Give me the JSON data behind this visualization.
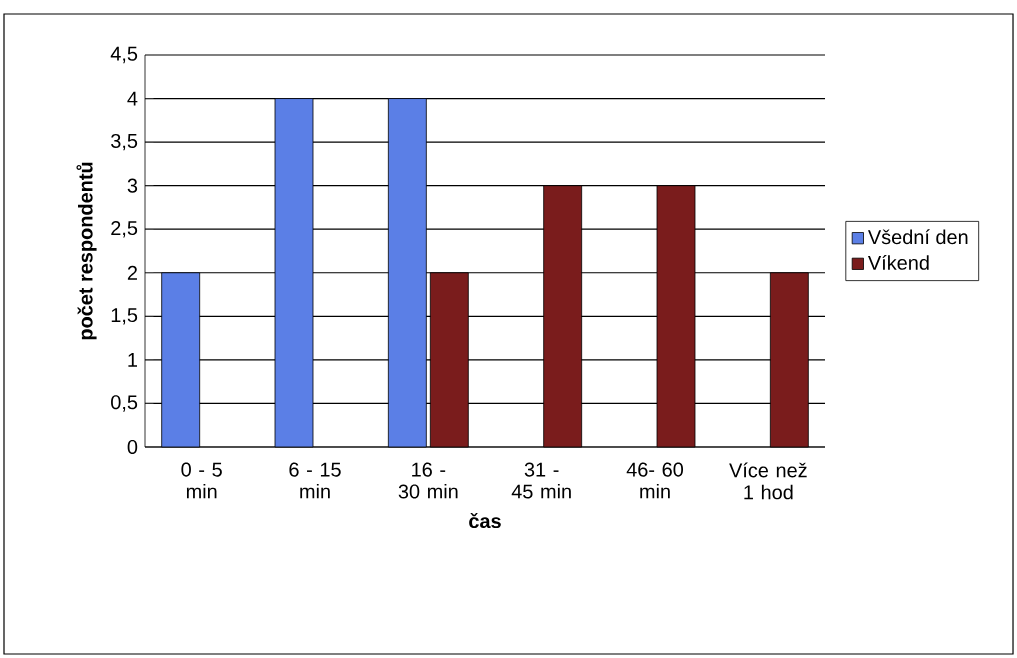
{
  "chart_data": {
    "type": "bar",
    "xlabel": "čas",
    "ylabel": "počet respondentů",
    "categories": [
      "0 - 5 min",
      "6 - 15 min",
      "16 - 30 min",
      "31 - 45 min",
      "46- 60 min",
      "Více než 1 hod"
    ],
    "series": [
      {
        "name": "Všední den",
        "color": "#5b7fe6",
        "values": [
          2,
          4,
          4,
          null,
          null,
          null
        ]
      },
      {
        "name": "Víkend",
        "color": "#7a1c1c",
        "values": [
          null,
          null,
          2,
          3,
          3,
          2
        ]
      }
    ],
    "ylim": [
      0,
      4.5
    ],
    "yticks": [
      0,
      {
        "value": 0.5,
        "label": "0,5"
      },
      1,
      {
        "value": 1.5,
        "label": "1,5"
      },
      2,
      {
        "value": 2.5,
        "label": "2,5"
      },
      3,
      {
        "value": 3.5,
        "label": "3,5"
      },
      4,
      {
        "value": 4.5,
        "label": "4,5"
      }
    ],
    "grid": "y",
    "legend": "right"
  }
}
